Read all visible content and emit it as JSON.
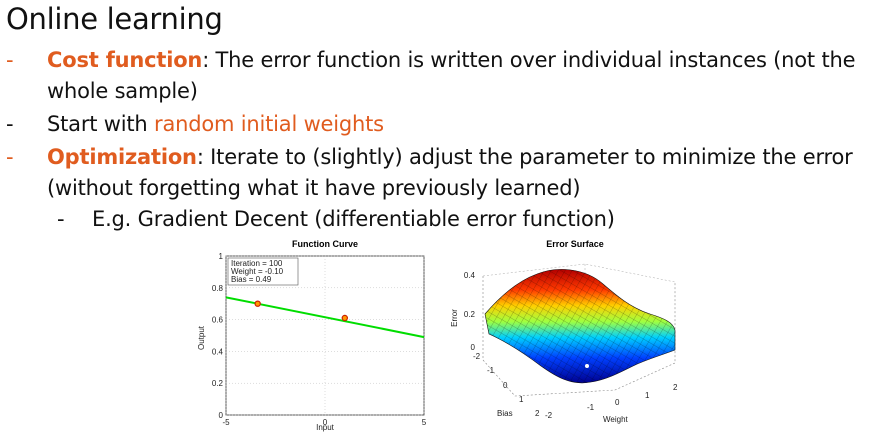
{
  "slide": {
    "title": "Online learning",
    "bullets": [
      {
        "dash": "-",
        "bold": "Cost function",
        "rest": ": The error function is written over individual instances (not the",
        "cont": "whole sample)"
      },
      {
        "dash": "-",
        "plain": "Start with ",
        "highlight": "random initial weights"
      },
      {
        "dash": "-",
        "bold": "Optimization",
        "rest": ": Iterate to (slightly) adjust the parameter to minimize the error",
        "cont": "(without forgetting what it have previously learned)"
      },
      {
        "dash": "-",
        "text": "E.g. Gradient Decent (differentiable error function)"
      }
    ]
  },
  "colors": {
    "accent": "#E05C1F",
    "line": "#00DD00",
    "marker": "#CC2200"
  },
  "chart_data": [
    {
      "type": "line",
      "title": "Function Curve",
      "xlabel": "Input",
      "ylabel": "Output",
      "xlim": [
        -5,
        5
      ],
      "ylim": [
        0,
        1
      ],
      "xticks": [
        "-5",
        "0",
        "5"
      ],
      "yticks": [
        "0",
        "0.2",
        "0.4",
        "0.6",
        "0.8",
        "1"
      ],
      "annotation": [
        "Iteration = 100",
        "Weight = -0.10",
        "Bias = 0.49"
      ],
      "line": {
        "x": [
          -5,
          5
        ],
        "y": [
          0.74,
          0.49
        ]
      },
      "points": [
        {
          "x": -3.4,
          "y": 0.7
        },
        {
          "x": 1.0,
          "y": 0.61
        }
      ]
    },
    {
      "type": "surface",
      "title": "Error Surface",
      "xlabel": "Weight",
      "ylabel": "Bias",
      "zlabel": "Error",
      "zticks": [
        "0",
        "0.2",
        "0.4"
      ],
      "weight_ticks": [
        "-2",
        "-1",
        "0",
        "1",
        "2"
      ],
      "bias_ticks": [
        "-2",
        "-1",
        "0",
        "1",
        "2"
      ]
    }
  ]
}
